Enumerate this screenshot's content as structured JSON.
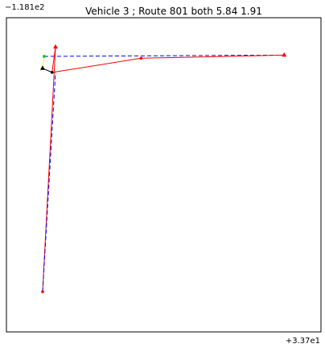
{
  "chart_data": {
    "type": "line",
    "title": "Vehicle 3 ; Route 801 both 5.84 1.91",
    "xlabel": "",
    "ylabel": "",
    "x_offset_label": "+3.37e1",
    "y_offset_label": "−1.181e2",
    "grid": false,
    "legend": "none",
    "series": [
      {
        "style": "blue-dashed",
        "color": "#0000ff",
        "points": [
          [
            0.12,
            0.877
          ],
          [
            0.883,
            0.881
          ]
        ]
      },
      {
        "style": "red-solid",
        "color": "#ff0000",
        "points": [
          [
            0.115,
            0.128
          ],
          [
            0.156,
            0.907
          ],
          [
            0.145,
            0.826
          ],
          [
            0.428,
            0.871
          ],
          [
            0.883,
            0.881
          ]
        ]
      },
      {
        "style": "blue-dashed",
        "color": "#0000ff",
        "points": [
          [
            0.115,
            0.128
          ],
          [
            0.156,
            0.826
          ]
        ]
      },
      {
        "style": "black-solid",
        "color": "#000000",
        "points": [
          [
            0.115,
            0.839
          ],
          [
            0.145,
            0.826
          ]
        ]
      },
      {
        "style": "yellow-solid",
        "color": "#ffff00",
        "points": [
          [
            0.12,
            0.877
          ],
          [
            0.115,
            0.839
          ]
        ]
      }
    ],
    "markers": [
      {
        "color": "#ff0000",
        "shape": "triangle",
        "x": 0.156,
        "y": 0.907
      },
      {
        "color": "#ff0000",
        "shape": "triangle",
        "x": 0.883,
        "y": 0.881
      },
      {
        "color": "#ff0000",
        "shape": "dot",
        "x": 0.115,
        "y": 0.128
      },
      {
        "color": "#ff0000",
        "shape": "dot",
        "x": 0.428,
        "y": 0.871
      },
      {
        "color": "#00cc00",
        "shape": "dot",
        "x": 0.12,
        "y": 0.877
      },
      {
        "color": "#000000",
        "shape": "triangle",
        "x": 0.115,
        "y": 0.839
      },
      {
        "color": "#000000",
        "shape": "dot",
        "x": 0.145,
        "y": 0.826
      }
    ],
    "xlim": [
      0,
      1
    ],
    "ylim": [
      0,
      1
    ]
  }
}
